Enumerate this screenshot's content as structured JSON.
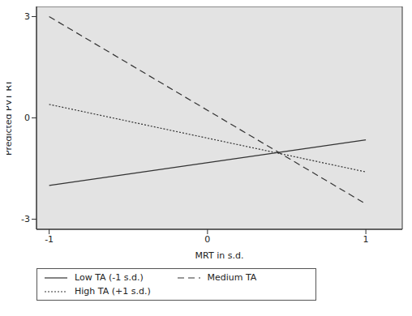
{
  "chart_data": {
    "type": "line",
    "x_label": "MRT in s.d.",
    "y_label": "Predicted PVT RT",
    "x": [
      -1,
      1
    ],
    "xlim": [
      -1.08,
      1.23
    ],
    "xticks": [
      -1,
      0,
      1
    ],
    "ylim": [
      -3.3,
      3.3
    ],
    "yticks": [
      -3,
      0,
      3
    ],
    "grid": false,
    "legend": "bottom",
    "series": [
      {
        "name": "Low TA (-1 s.d.)",
        "color": "#333333",
        "line_style": "solid",
        "values": [
          -2.0,
          -0.65
        ]
      },
      {
        "name": "Medium TA",
        "color": "#333333",
        "line_style": "dashed",
        "values": [
          3.0,
          -2.55
        ]
      },
      {
        "name": "High TA (+1 s.d.)",
        "color": "#333333",
        "line_style": "dotted",
        "values": [
          0.4,
          -1.6
        ]
      }
    ]
  }
}
